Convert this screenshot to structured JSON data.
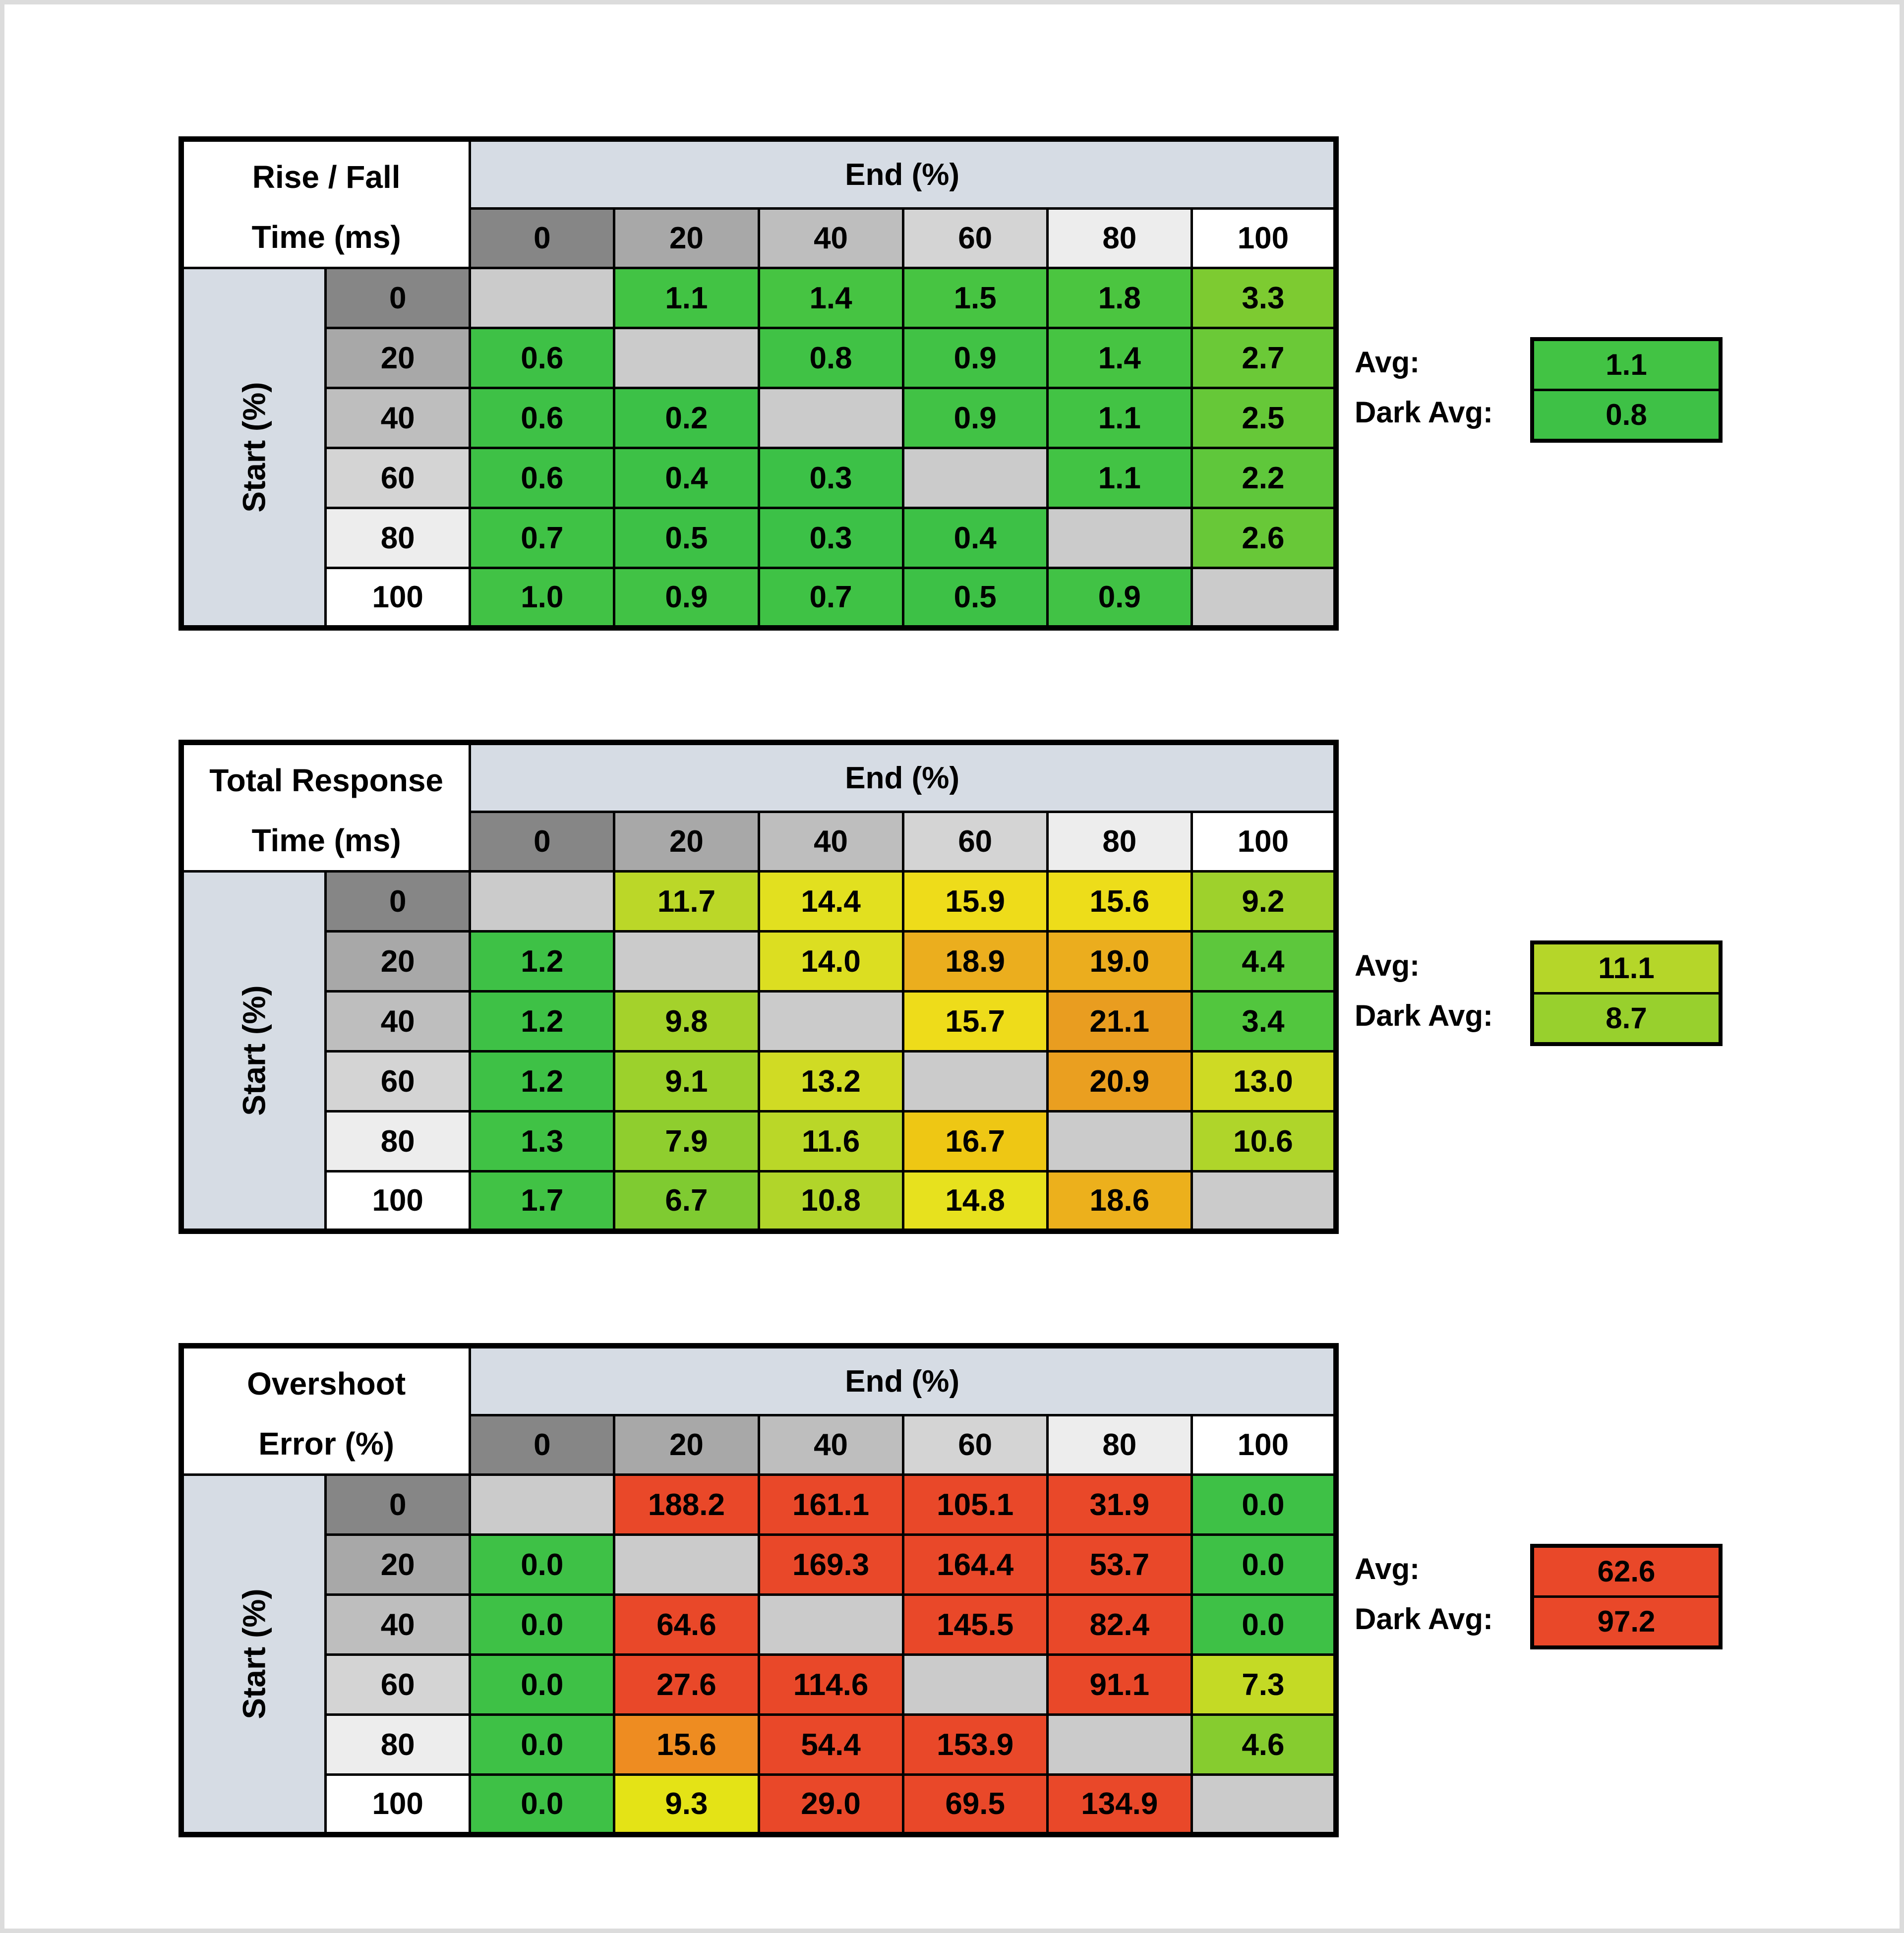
{
  "style": {
    "band_color": "#D6DCE4",
    "diag_color": "#CBCBCB",
    "header_shades": [
      "#868686",
      "#A8A8A8",
      "#BEBEBE",
      "#D4D4D4",
      "#EDEDED",
      "#FFFFFF"
    ],
    "border_color": "#000000",
    "frame_color": "#DCDCDC",
    "status_green": "#3EC146",
    "status_yellow": "#E4E316",
    "status_orange": "#EE8C21",
    "status_red": "#E94829"
  },
  "chart_data": [
    {
      "type": "heatmap",
      "id": "rise-fall-time",
      "title": "Rise / Fall Time (ms)",
      "title_lines": [
        "Rise / Fall",
        "Time (ms)"
      ],
      "x_axis": "End (%)",
      "y_axis": "Start (%)",
      "x_ticks": [
        "0",
        "20",
        "40",
        "60",
        "80",
        "100"
      ],
      "y_ticks": [
        "0",
        "20",
        "40",
        "60",
        "80",
        "100"
      ],
      "values": [
        [
          "",
          "1.1",
          "1.4",
          "1.5",
          "1.8",
          "3.3"
        ],
        [
          "0.6",
          "",
          "0.8",
          "0.9",
          "1.4",
          "2.7"
        ],
        [
          "0.6",
          "0.2",
          "",
          "0.9",
          "1.1",
          "2.5"
        ],
        [
          "0.6",
          "0.4",
          "0.3",
          "",
          "1.1",
          "2.2"
        ],
        [
          "0.7",
          "0.5",
          "0.3",
          "0.4",
          "",
          "2.6"
        ],
        [
          "1.0",
          "0.9",
          "0.7",
          "0.5",
          "0.9",
          ""
        ]
      ],
      "colors": [
        [
          "",
          "#42C344",
          "#46C442",
          "#47C442",
          "#4BC540",
          "#7DCB31"
        ],
        [
          "#3EC146",
          "",
          "#40C245",
          "#41C245",
          "#46C442",
          "#6BC937"
        ],
        [
          "#3EC146",
          "#3CC147",
          "",
          "#41C245",
          "#42C344",
          "#66C838"
        ],
        [
          "#3EC146",
          "#3DC146",
          "#3CC147",
          "",
          "#42C344",
          "#5FC73B"
        ],
        [
          "#3FC245",
          "#3DC146",
          "#3CC147",
          "#3DC146",
          "",
          "#68C838"
        ],
        [
          "#41C245",
          "#41C245",
          "#3FC245",
          "#3DC146",
          "#41C245",
          ""
        ]
      ],
      "avg": {
        "label": "Avg:",
        "value": "1.1",
        "color": "#42C344"
      },
      "dark_avg": {
        "label": "Dark Avg:",
        "value": "0.8",
        "color": "#3EC146"
      }
    },
    {
      "type": "heatmap",
      "id": "total-response-time",
      "title": "Total Response Time (ms)",
      "title_lines": [
        "Total Response",
        "Time (ms)"
      ],
      "x_axis": "End (%)",
      "y_axis": "Start (%)",
      "x_ticks": [
        "0",
        "20",
        "40",
        "60",
        "80",
        "100"
      ],
      "y_ticks": [
        "0",
        "20",
        "40",
        "60",
        "80",
        "100"
      ],
      "values": [
        [
          "",
          "11.7",
          "14.4",
          "15.9",
          "15.6",
          "9.2"
        ],
        [
          "1.2",
          "",
          "14.0",
          "18.9",
          "19.0",
          "4.4"
        ],
        [
          "1.2",
          "9.8",
          "",
          "15.7",
          "21.1",
          "3.4"
        ],
        [
          "1.2",
          "9.1",
          "13.2",
          "",
          "20.9",
          "13.0"
        ],
        [
          "1.3",
          "7.9",
          "11.6",
          "16.7",
          "",
          "10.6"
        ],
        [
          "1.7",
          "6.7",
          "10.8",
          "14.8",
          "18.6",
          ""
        ]
      ],
      "colors": [
        [
          "",
          "#BBD728",
          "#E2E01F",
          "#EEDC1A",
          "#EDDD1A",
          "#9ED12C"
        ],
        [
          "#3EC146",
          "",
          "#DCDE21",
          "#EBAE1E",
          "#EBAD1E",
          "#5DC73C"
        ],
        [
          "#3EC146",
          "#A4D22B",
          "",
          "#EEDC1A",
          "#E99D20",
          "#52C63E"
        ],
        [
          "#3EC146",
          "#9CD12C",
          "#D0DB24",
          "",
          "#EA9F20",
          "#CEDA24"
        ],
        [
          "#40C245",
          "#8FCE2E",
          "#BAD728",
          "#EEC714",
          "",
          "#AFD52A"
        ],
        [
          "#41C245",
          "#7FCB31",
          "#B1D52A",
          "#E7E11E",
          "#ECB01C",
          ""
        ]
      ],
      "avg": {
        "label": "Avg:",
        "value": "11.1",
        "color": "#B5D629"
      },
      "dark_avg": {
        "label": "Dark Avg:",
        "value": "8.7",
        "color": "#98D02D"
      }
    },
    {
      "type": "heatmap",
      "id": "overshoot-error",
      "title": "Overshoot Error (%)",
      "title_lines": [
        "Overshoot",
        "Error (%)"
      ],
      "x_axis": "End (%)",
      "y_axis": "Start (%)",
      "x_ticks": [
        "0",
        "20",
        "40",
        "60",
        "80",
        "100"
      ],
      "y_ticks": [
        "0",
        "20",
        "40",
        "60",
        "80",
        "100"
      ],
      "values": [
        [
          "",
          "188.2",
          "161.1",
          "105.1",
          "31.9",
          "0.0"
        ],
        [
          "0.0",
          "",
          "169.3",
          "164.4",
          "53.7",
          "0.0"
        ],
        [
          "0.0",
          "64.6",
          "",
          "145.5",
          "82.4",
          "0.0"
        ],
        [
          "0.0",
          "27.6",
          "114.6",
          "",
          "91.1",
          "7.3"
        ],
        [
          "0.0",
          "15.6",
          "54.4",
          "153.9",
          "",
          "4.6"
        ],
        [
          "0.0",
          "9.3",
          "29.0",
          "69.5",
          "134.9",
          ""
        ]
      ],
      "colors": [
        [
          "",
          "#E94829",
          "#E94829",
          "#E94829",
          "#E94829",
          "#3EC146"
        ],
        [
          "#3EC146",
          "",
          "#E94829",
          "#E94829",
          "#E94829",
          "#3EC146"
        ],
        [
          "#3EC146",
          "#E94829",
          "",
          "#E94829",
          "#E94829",
          "#3EC146"
        ],
        [
          "#3EC146",
          "#E94829",
          "#E94829",
          "",
          "#E94829",
          "#C4DA25"
        ],
        [
          "#3EC146",
          "#EE8C21",
          "#E94829",
          "#E94829",
          "",
          "#86CC2F"
        ],
        [
          "#3EC146",
          "#E4E316",
          "#E94829",
          "#E94829",
          "#E94829",
          ""
        ]
      ],
      "avg": {
        "label": "Avg:",
        "value": "62.6",
        "color": "#E94829"
      },
      "dark_avg": {
        "label": "Dark Avg:",
        "value": "97.2",
        "color": "#E94829"
      }
    }
  ]
}
